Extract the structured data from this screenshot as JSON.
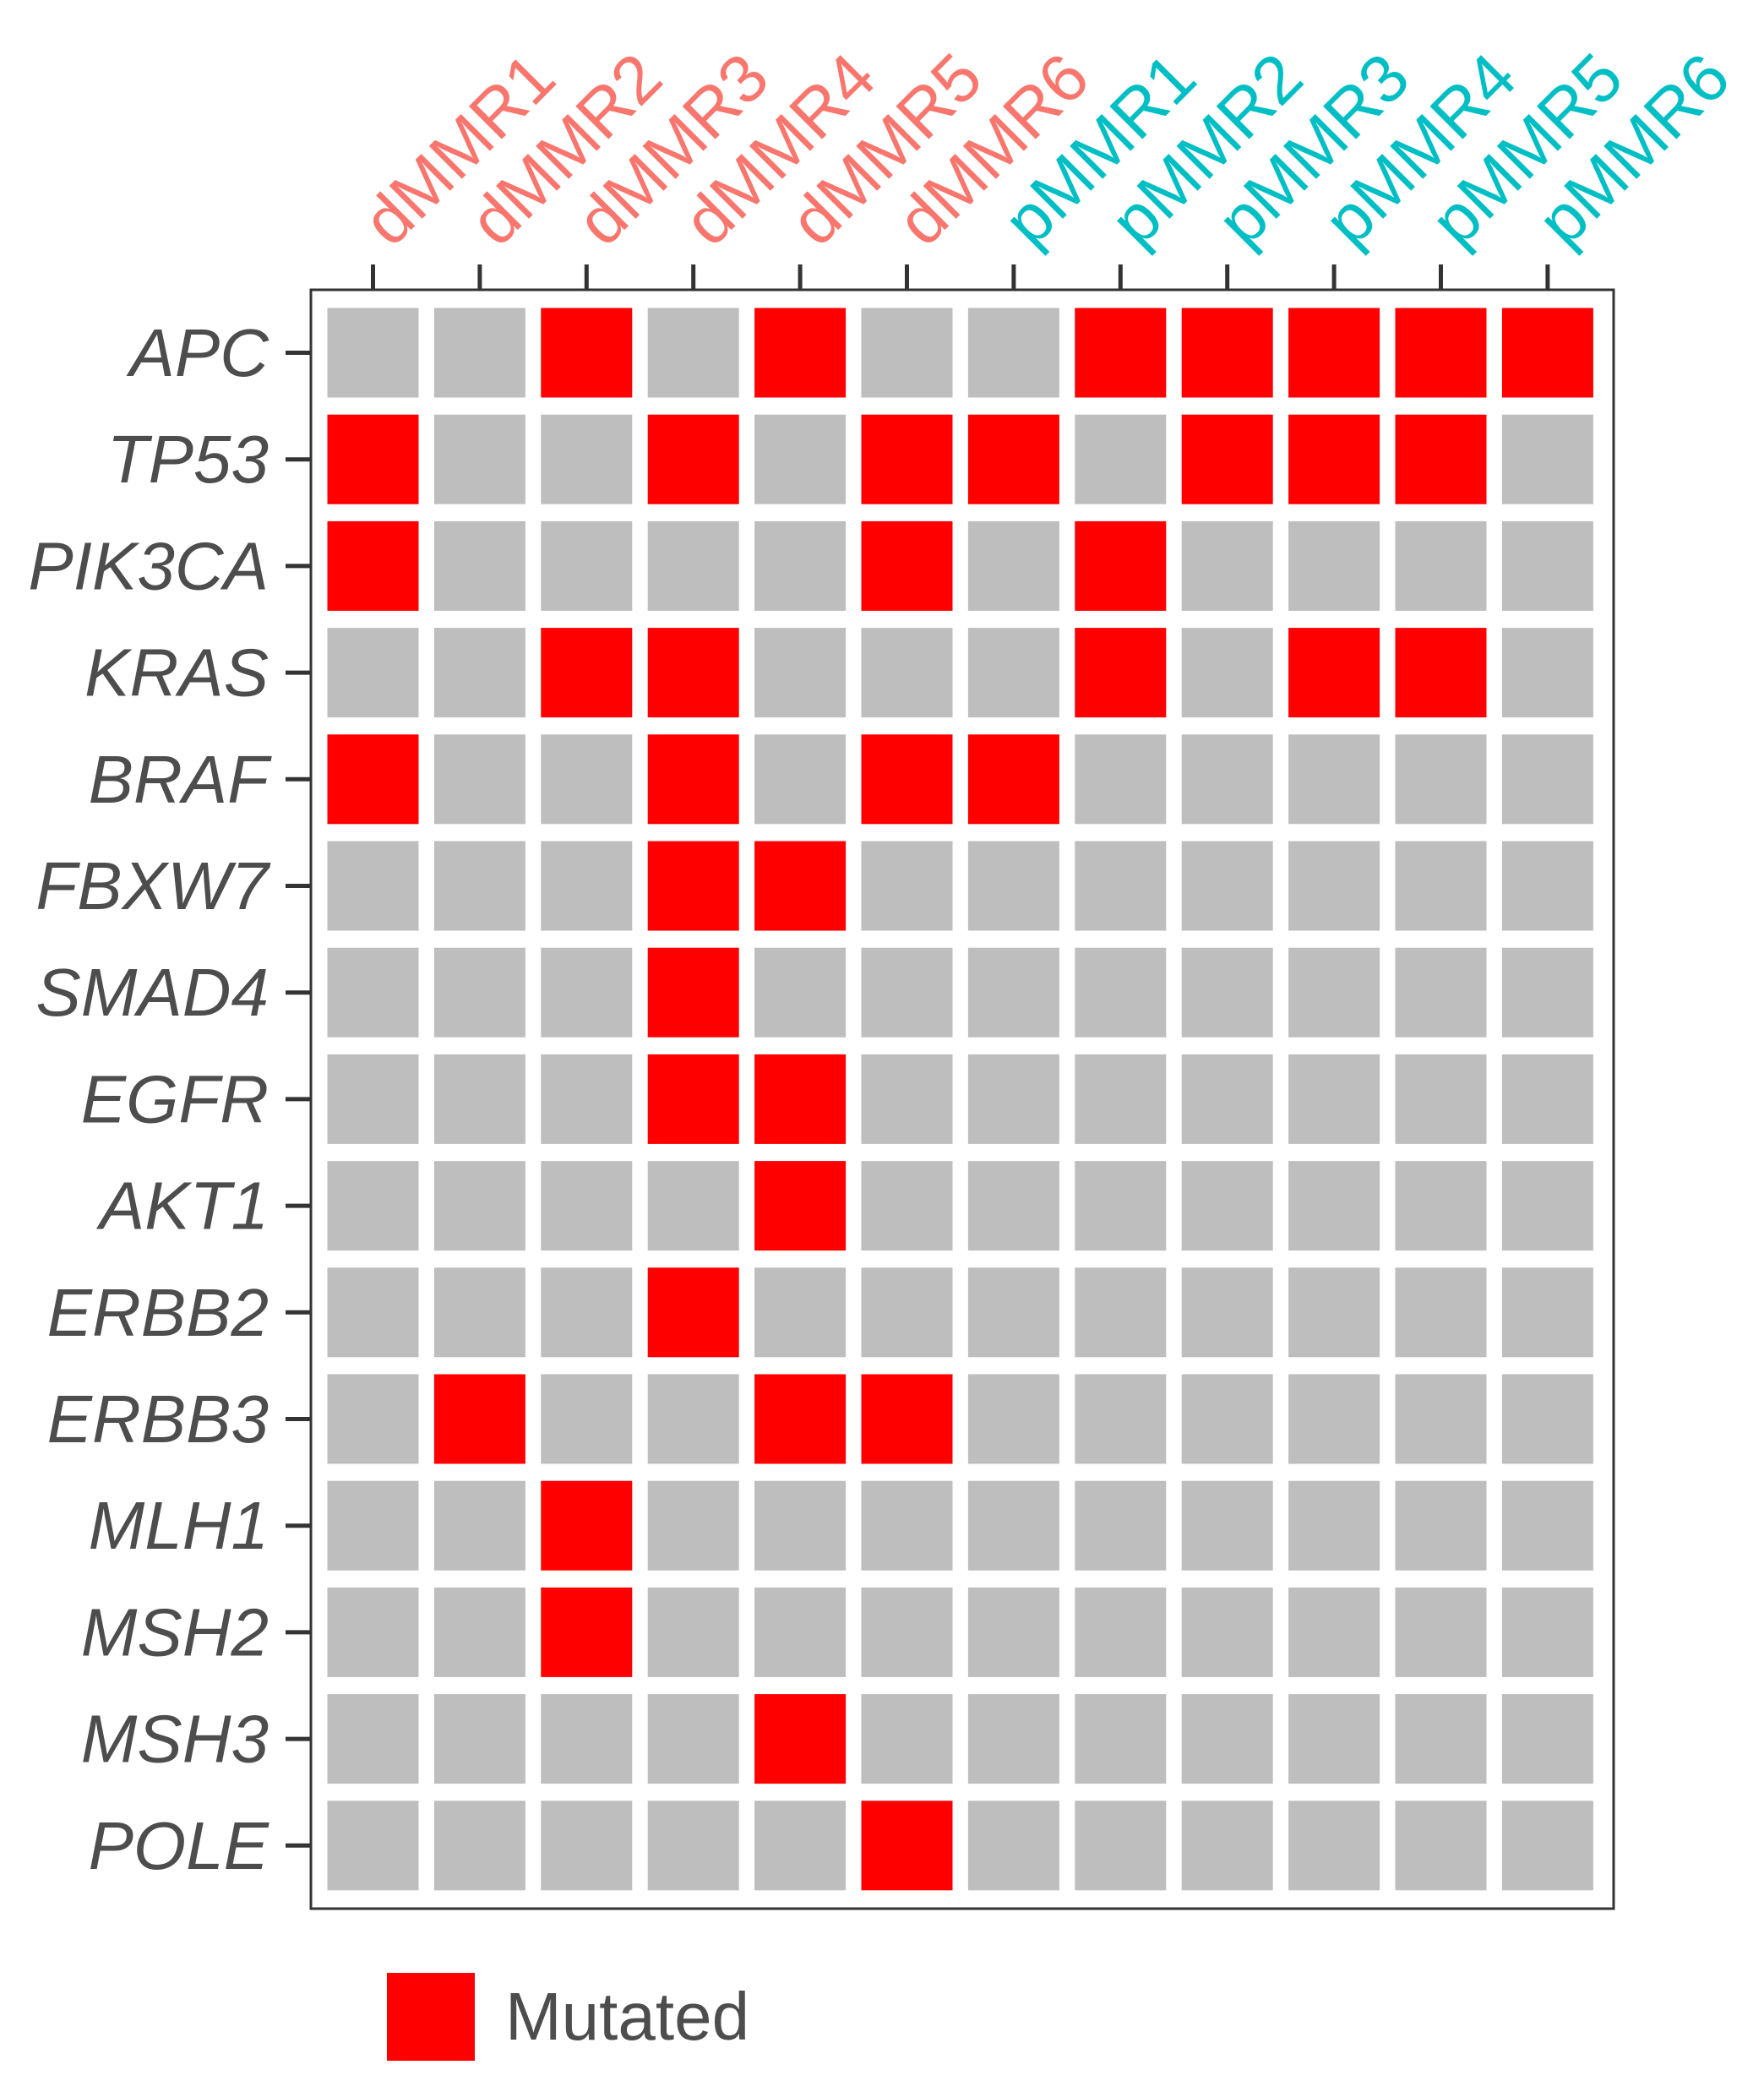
{
  "chart_data": {
    "type": "heatmap",
    "title": "",
    "xlabel": "",
    "ylabel": "",
    "columns": [
      {
        "label": "dMMR1",
        "group": "dMMR"
      },
      {
        "label": "dMMR2",
        "group": "dMMR"
      },
      {
        "label": "dMMR3",
        "group": "dMMR"
      },
      {
        "label": "dMMR4",
        "group": "dMMR"
      },
      {
        "label": "dMMR5",
        "group": "dMMR"
      },
      {
        "label": "dMMR6",
        "group": "dMMR"
      },
      {
        "label": "pMMR1",
        "group": "pMMR"
      },
      {
        "label": "pMMR2",
        "group": "pMMR"
      },
      {
        "label": "pMMR3",
        "group": "pMMR"
      },
      {
        "label": "pMMR4",
        "group": "pMMR"
      },
      {
        "label": "pMMR5",
        "group": "pMMR"
      },
      {
        "label": "pMMR6",
        "group": "pMMR"
      }
    ],
    "rows": [
      "APC",
      "TP53",
      "PIK3CA",
      "KRAS",
      "BRAF",
      "FBXW7",
      "SMAD4",
      "EGFR",
      "AKT1",
      "ERBB2",
      "ERBB3",
      "MLH1",
      "MSH2",
      "MSH3",
      "POLE"
    ],
    "values": [
      [
        0,
        0,
        1,
        0,
        1,
        0,
        0,
        1,
        1,
        1,
        1,
        1
      ],
      [
        1,
        0,
        0,
        1,
        0,
        1,
        1,
        0,
        1,
        1,
        1,
        0
      ],
      [
        1,
        0,
        0,
        0,
        0,
        1,
        0,
        1,
        0,
        0,
        0,
        0
      ],
      [
        0,
        0,
        1,
        1,
        0,
        0,
        0,
        1,
        0,
        1,
        1,
        0
      ],
      [
        1,
        0,
        0,
        1,
        0,
        1,
        1,
        0,
        0,
        0,
        0,
        0
      ],
      [
        0,
        0,
        0,
        1,
        1,
        0,
        0,
        0,
        0,
        0,
        0,
        0
      ],
      [
        0,
        0,
        0,
        1,
        0,
        0,
        0,
        0,
        0,
        0,
        0,
        0
      ],
      [
        0,
        0,
        0,
        1,
        1,
        0,
        0,
        0,
        0,
        0,
        0,
        0
      ],
      [
        0,
        0,
        0,
        0,
        1,
        0,
        0,
        0,
        0,
        0,
        0,
        0
      ],
      [
        0,
        0,
        0,
        1,
        0,
        0,
        0,
        0,
        0,
        0,
        0,
        0
      ],
      [
        0,
        1,
        0,
        0,
        1,
        1,
        0,
        0,
        0,
        0,
        0,
        0
      ],
      [
        0,
        0,
        1,
        0,
        0,
        0,
        0,
        0,
        0,
        0,
        0,
        0
      ],
      [
        0,
        0,
        1,
        0,
        0,
        0,
        0,
        0,
        0,
        0,
        0,
        0
      ],
      [
        0,
        0,
        0,
        0,
        1,
        0,
        0,
        0,
        0,
        0,
        0,
        0
      ],
      [
        0,
        0,
        0,
        0,
        0,
        1,
        0,
        0,
        0,
        0,
        0,
        0
      ]
    ],
    "colors": {
      "mutated": "#ff0000",
      "not_mutated": "#bebebe",
      "dMMR": "#f8766d",
      "pMMR": "#00bfc4",
      "axis_text": "#4d4d4d",
      "frame": "#333333"
    },
    "legend": {
      "position": "bottom-left",
      "entries": [
        {
          "label": "Mutated",
          "color": "#ff0000"
        }
      ]
    },
    "grid": false
  }
}
